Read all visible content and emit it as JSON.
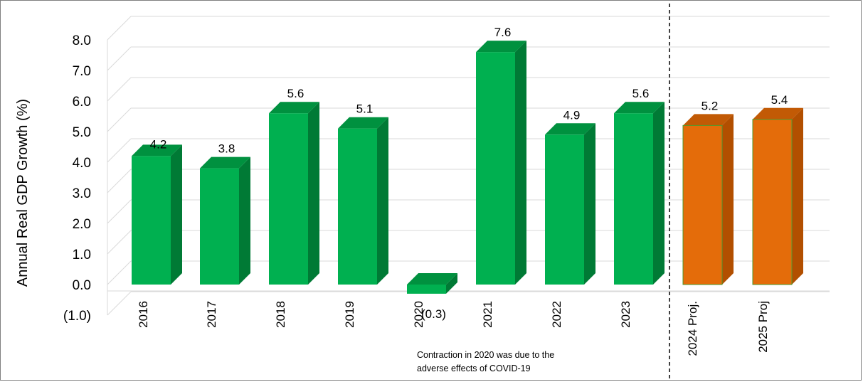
{
  "chart_data": {
    "type": "bar",
    "title": "",
    "ylabel": "Annual Real GDP Growth (%)",
    "xlabel": "",
    "ylim": [
      -1.0,
      8.0
    ],
    "yticks": [
      "(1.0)",
      "0.0",
      "1.0",
      "2.0",
      "3.0",
      "4.0",
      "5.0",
      "6.0",
      "7.0",
      "8.0"
    ],
    "grid": true,
    "categories": [
      "2016",
      "2017",
      "2018",
      "2019",
      "2020",
      "2021",
      "2022",
      "2023",
      "2024 Proj.",
      "2025 Proj"
    ],
    "values": [
      4.2,
      3.8,
      5.6,
      5.1,
      -0.3,
      7.6,
      4.9,
      5.6,
      5.2,
      5.4
    ],
    "value_labels": [
      "4.2",
      "3.8",
      "5.6",
      "5.1",
      "(0.3)",
      "7.6",
      "4.9",
      "5.6",
      "5.2",
      "5.4"
    ],
    "annotation": [
      "Contraction in 2020 was due to the",
      "adverse effects of COVID-19"
    ],
    "colors": {
      "actual_front": "#00b050",
      "actual_side": "#007a35",
      "actual_top": "#00913f",
      "projection_front": "#e46c0a",
      "projection_side": "#b24f00",
      "projection_top": "#c25a05",
      "projection_border": "#4e9a2e"
    },
    "projection_start_index": 8
  }
}
